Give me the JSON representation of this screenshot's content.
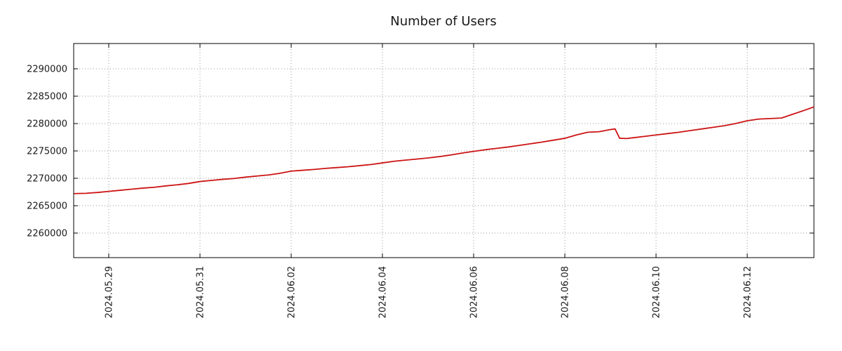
{
  "title": "Number of Users",
  "colors": {
    "line": "#cc1414",
    "grid": "#9a9a9a",
    "axis": "#000000",
    "text": "#1a1a1a",
    "background": "#ffffff"
  },
  "chart_data": {
    "type": "line",
    "title": "Number of Users",
    "grid": "dotted",
    "legend": "none",
    "x_axis": {
      "unit": "days since 2024-05-28 00:00",
      "range": [
        0.23,
        16.46
      ],
      "label_rotation": 90,
      "ticks": [
        {
          "pos": 1,
          "label": "2024.05.29"
        },
        {
          "pos": 3,
          "label": "2024.05.31"
        },
        {
          "pos": 5,
          "label": "2024.06.02"
        },
        {
          "pos": 7,
          "label": "2024.06.04"
        },
        {
          "pos": 9,
          "label": "2024.06.06"
        },
        {
          "pos": 11,
          "label": "2024.06.08"
        },
        {
          "pos": 13,
          "label": "2024.06.10"
        },
        {
          "pos": 15,
          "label": "2024.06.12"
        }
      ]
    },
    "y_axis": {
      "range": [
        2255500,
        2294600
      ],
      "ticks": [
        2260000,
        2265000,
        2270000,
        2275000,
        2280000,
        2285000,
        2290000
      ]
    },
    "series": [
      {
        "name": "Number of Users",
        "color": "#cc1414",
        "points": [
          [
            0.25,
            2267200
          ],
          [
            0.5,
            2267250
          ],
          [
            0.75,
            2267400
          ],
          [
            1,
            2267600
          ],
          [
            1.25,
            2267800
          ],
          [
            1.5,
            2268000
          ],
          [
            1.75,
            2268200
          ],
          [
            2,
            2268350
          ],
          [
            2.25,
            2268600
          ],
          [
            2.5,
            2268800
          ],
          [
            2.75,
            2269050
          ],
          [
            3,
            2269400
          ],
          [
            3.25,
            2269600
          ],
          [
            3.5,
            2269800
          ],
          [
            3.75,
            2269950
          ],
          [
            4,
            2270200
          ],
          [
            4.25,
            2270400
          ],
          [
            4.5,
            2270600
          ],
          [
            4.75,
            2270900
          ],
          [
            5,
            2271300
          ],
          [
            5.25,
            2271450
          ],
          [
            5.5,
            2271600
          ],
          [
            5.75,
            2271800
          ],
          [
            6,
            2271950
          ],
          [
            6.25,
            2272100
          ],
          [
            6.5,
            2272300
          ],
          [
            6.75,
            2272500
          ],
          [
            7,
            2272800
          ],
          [
            7.25,
            2273100
          ],
          [
            7.5,
            2273300
          ],
          [
            7.75,
            2273500
          ],
          [
            8,
            2273700
          ],
          [
            8.25,
            2273950
          ],
          [
            8.5,
            2274250
          ],
          [
            8.75,
            2274600
          ],
          [
            9,
            2274900
          ],
          [
            9.25,
            2275200
          ],
          [
            9.5,
            2275450
          ],
          [
            9.75,
            2275700
          ],
          [
            10,
            2276000
          ],
          [
            10.25,
            2276300
          ],
          [
            10.5,
            2276600
          ],
          [
            10.75,
            2276950
          ],
          [
            11,
            2277300
          ],
          [
            11.25,
            2277900
          ],
          [
            11.5,
            2278400
          ],
          [
            11.75,
            2278500
          ],
          [
            12,
            2278900
          ],
          [
            12.1,
            2279000
          ],
          [
            12.2,
            2277300
          ],
          [
            12.35,
            2277250
          ],
          [
            12.5,
            2277400
          ],
          [
            12.75,
            2277650
          ],
          [
            13,
            2277900
          ],
          [
            13.25,
            2278150
          ],
          [
            13.5,
            2278400
          ],
          [
            13.75,
            2278700
          ],
          [
            14,
            2279000
          ],
          [
            14.25,
            2279300
          ],
          [
            14.5,
            2279600
          ],
          [
            14.75,
            2280000
          ],
          [
            15,
            2280500
          ],
          [
            15.25,
            2280800
          ],
          [
            15.5,
            2280900
          ],
          [
            15.75,
            2281000
          ],
          [
            16,
            2281700
          ],
          [
            16.25,
            2282400
          ],
          [
            16.45,
            2283000
          ]
        ]
      }
    ]
  }
}
